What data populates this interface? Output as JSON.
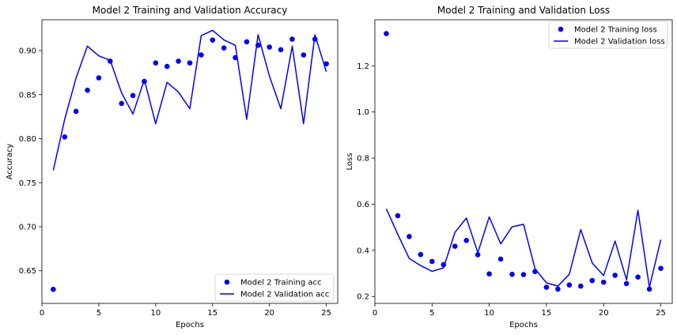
{
  "figure": {
    "background": "#ffffff"
  },
  "chart_data": [
    {
      "type": "line",
      "title": "Model 2 Training and Validation Accuracy",
      "xlabel": "Epochs",
      "ylabel": "Accuracy",
      "xlim": [
        0,
        26
      ],
      "ylim": [
        0.613,
        0.935
      ],
      "xticks": [
        0,
        5,
        10,
        15,
        20,
        25
      ],
      "xtick_labels": [
        "0",
        "5",
        "10",
        "15",
        "20",
        "25"
      ],
      "yticks": [
        0.65,
        0.7,
        0.75,
        0.8,
        0.85,
        0.9
      ],
      "ytick_labels": [
        "0.65",
        "0.70",
        "0.75",
        "0.80",
        "0.85",
        "0.90"
      ],
      "legend_position": "lower-right",
      "color": "#0000ff",
      "x": [
        1,
        2,
        3,
        4,
        5,
        6,
        7,
        8,
        9,
        10,
        11,
        12,
        13,
        14,
        15,
        16,
        17,
        18,
        19,
        20,
        21,
        22,
        23,
        24,
        25
      ],
      "series": [
        {
          "name": "Model 2 Training acc",
          "style": "dots",
          "values": [
            0.629,
            0.802,
            0.831,
            0.855,
            0.869,
            0.888,
            0.84,
            0.849,
            0.865,
            0.886,
            0.882,
            0.888,
            0.886,
            0.895,
            0.912,
            0.903,
            0.892,
            0.91,
            0.906,
            0.904,
            0.901,
            0.913,
            0.895,
            0.913,
            0.885
          ]
        },
        {
          "name": "Model 2 Validation acc",
          "style": "line",
          "values": [
            0.764,
            0.822,
            0.869,
            0.905,
            0.894,
            0.889,
            0.852,
            0.828,
            0.867,
            0.817,
            0.864,
            0.853,
            0.834,
            0.917,
            0.923,
            0.912,
            0.906,
            0.822,
            0.918,
            0.871,
            0.834,
            0.905,
            0.817,
            0.918,
            0.876
          ]
        }
      ]
    },
    {
      "type": "line",
      "title": "Model 2 Training and Validation Loss",
      "xlabel": "Epochs",
      "ylabel": "Loss",
      "xlim": [
        0,
        26
      ],
      "ylim": [
        0.17,
        1.4
      ],
      "xticks": [
        0,
        5,
        10,
        15,
        20,
        25
      ],
      "xtick_labels": [
        "0",
        "5",
        "10",
        "15",
        "20",
        "25"
      ],
      "yticks": [
        0.2,
        0.4,
        0.6,
        0.8,
        1.0,
        1.2
      ],
      "ytick_labels": [
        "0.2",
        "0.4",
        "0.6",
        "0.8",
        "1.0",
        "1.2"
      ],
      "legend_position": "upper-right",
      "color": "#0000ff",
      "x": [
        1,
        2,
        3,
        4,
        5,
        6,
        7,
        8,
        9,
        10,
        11,
        12,
        13,
        14,
        15,
        16,
        17,
        18,
        19,
        20,
        21,
        22,
        23,
        24,
        25
      ],
      "series": [
        {
          "name": "Model 2 Training loss",
          "style": "dots",
          "values": [
            1.34,
            0.55,
            0.46,
            0.382,
            0.352,
            0.338,
            0.418,
            0.443,
            0.381,
            0.298,
            0.362,
            0.296,
            0.295,
            0.308,
            0.24,
            0.232,
            0.25,
            0.245,
            0.269,
            0.262,
            0.292,
            0.256,
            0.284,
            0.232,
            0.322
          ]
        },
        {
          "name": "Model 2 Validation loss",
          "style": "line",
          "values": [
            0.58,
            0.47,
            0.365,
            0.334,
            0.309,
            0.324,
            0.478,
            0.54,
            0.39,
            0.545,
            0.428,
            0.502,
            0.513,
            0.32,
            0.259,
            0.245,
            0.296,
            0.49,
            0.345,
            0.291,
            0.44,
            0.272,
            0.574,
            0.24,
            0.446
          ]
        }
      ]
    }
  ]
}
